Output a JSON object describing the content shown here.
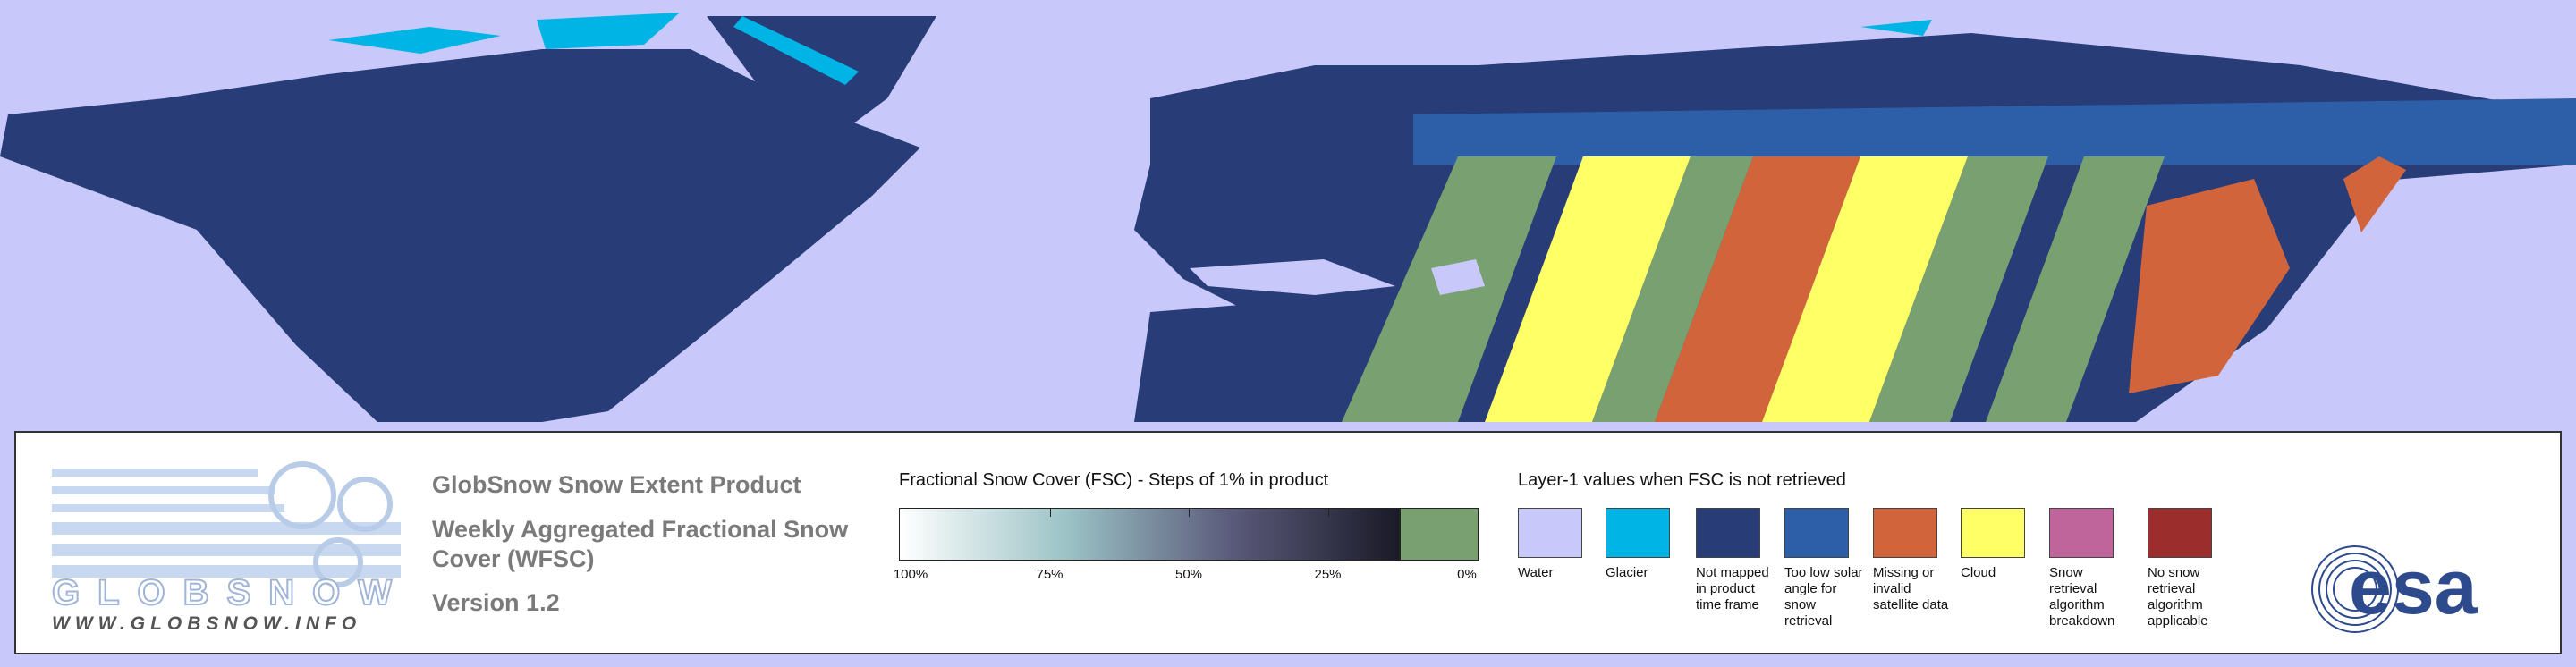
{
  "logo": {
    "name": "GLOBSNOW",
    "url": "WWW.GLOBSNOW.INFO"
  },
  "header": {
    "product_title": "GlobSnow Snow Extent Product",
    "subtitle": "Weekly Aggregated Fractional Snow Cover (WFSC)",
    "version": "Version 1.2"
  },
  "fsc_legend": {
    "title": "Fractional Snow Cover (FSC) - Steps of 1% in product",
    "ticks": [
      "100%",
      "75%",
      "50%",
      "25%",
      "0%"
    ],
    "gradient_colors": [
      "#ffffff",
      "#9cc3c6",
      "#5a5a7a",
      "#1a1a28"
    ],
    "no_snow_color": "#78a070"
  },
  "layer1_legend": {
    "title": "Layer-1 values when FSC is not retrieved",
    "items": [
      {
        "label": "Water",
        "color": "#c8c8fa"
      },
      {
        "label": "Glacier",
        "color": "#00b4e6"
      },
      {
        "label": "Not mapped in product time frame",
        "color": "#283c78"
      },
      {
        "label": "Too low solar angle for snow retrieval",
        "color": "#2d5fa8"
      },
      {
        "label": "Missing or invalid satellite data",
        "color": "#d2643c"
      },
      {
        "label": "Cloud",
        "color": "#ffff66"
      },
      {
        "label": "Snow retrieval algorithm breakdown",
        "color": "#c0649c"
      },
      {
        "label": "No snow retrieval algorithm applicable",
        "color": "#9b2d2d"
      }
    ]
  },
  "esa_logo": {
    "text": "esa"
  }
}
